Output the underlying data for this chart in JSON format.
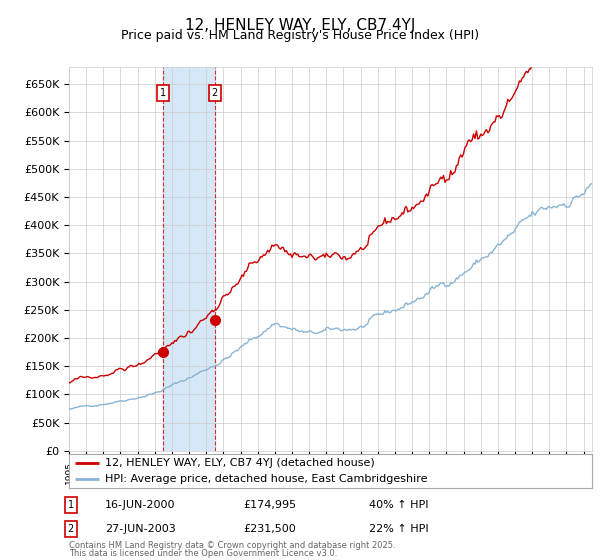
{
  "title": "12, HENLEY WAY, ELY, CB7 4YJ",
  "subtitle": "Price paid vs. HM Land Registry's House Price Index (HPI)",
  "ylim": [
    0,
    680000
  ],
  "yticks": [
    0,
    50000,
    100000,
    150000,
    200000,
    250000,
    300000,
    350000,
    400000,
    450000,
    500000,
    550000,
    600000,
    650000
  ],
  "ytick_labels": [
    "£0",
    "£50K",
    "£100K",
    "£150K",
    "£200K",
    "£250K",
    "£300K",
    "£350K",
    "£400K",
    "£450K",
    "£500K",
    "£550K",
    "£600K",
    "£650K"
  ],
  "transaction1_year": 2000.46,
  "transaction1_price": 174995,
  "transaction2_year": 2003.49,
  "transaction2_price": 231500,
  "legend_property": "12, HENLEY WAY, ELY, CB7 4YJ (detached house)",
  "legend_hpi": "HPI: Average price, detached house, East Cambridgeshire",
  "footer_line1": "Contains HM Land Registry data © Crown copyright and database right 2025.",
  "footer_line2": "This data is licensed under the Open Government Licence v3.0.",
  "property_color": "#cc0000",
  "hpi_color": "#8ab4d4",
  "shade_color": "#d6e8f7",
  "background_color": "#ffffff",
  "grid_color": "#cccccc",
  "title_fontsize": 11,
  "subtitle_fontsize": 9,
  "tick_fontsize": 8,
  "legend_fontsize": 8
}
